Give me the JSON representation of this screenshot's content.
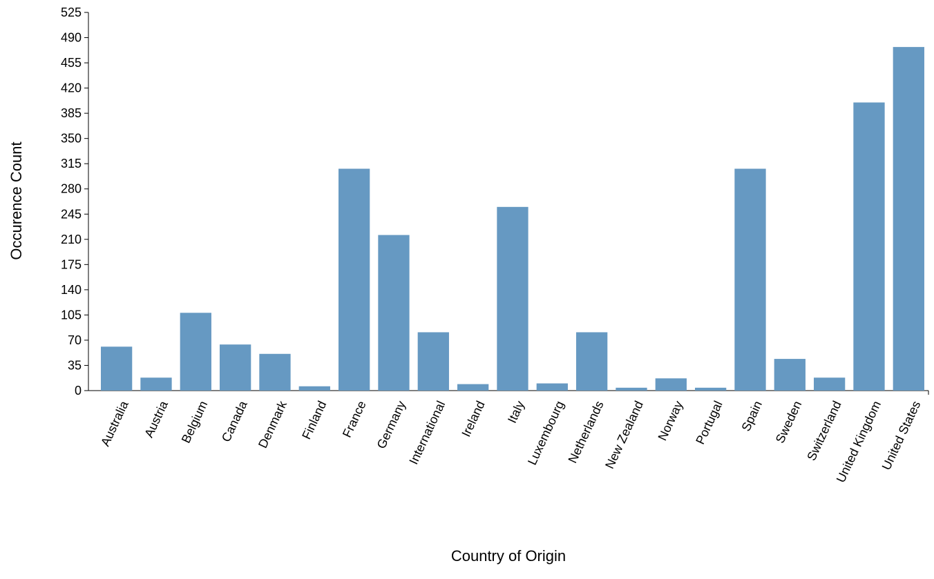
{
  "chart_data": {
    "type": "bar",
    "title": "",
    "xlabel": "Country of Origin",
    "ylabel": "Occurence Count",
    "ylim": [
      0,
      525
    ],
    "yticks": [
      0,
      35,
      70,
      105,
      140,
      175,
      210,
      245,
      280,
      315,
      350,
      385,
      420,
      455,
      490,
      525
    ],
    "grid": false,
    "legend": "none",
    "bar_color": "#6699c2",
    "categories": [
      "Australia",
      "Austria",
      "Belgium",
      "Canada",
      "Denmark",
      "Finland",
      "France",
      "Germany",
      "International",
      "Ireland",
      "Italy",
      "Luxembourg",
      "Netherlands",
      "New Zealand",
      "Norway",
      "Portugal",
      "Spain",
      "Sweden",
      "Switzerland",
      "United Kingdom",
      "United States"
    ],
    "values": [
      61,
      18,
      108,
      64,
      51,
      6,
      308,
      216,
      81,
      9,
      255,
      10,
      81,
      4,
      17,
      4,
      308,
      44,
      18,
      400,
      477
    ]
  }
}
